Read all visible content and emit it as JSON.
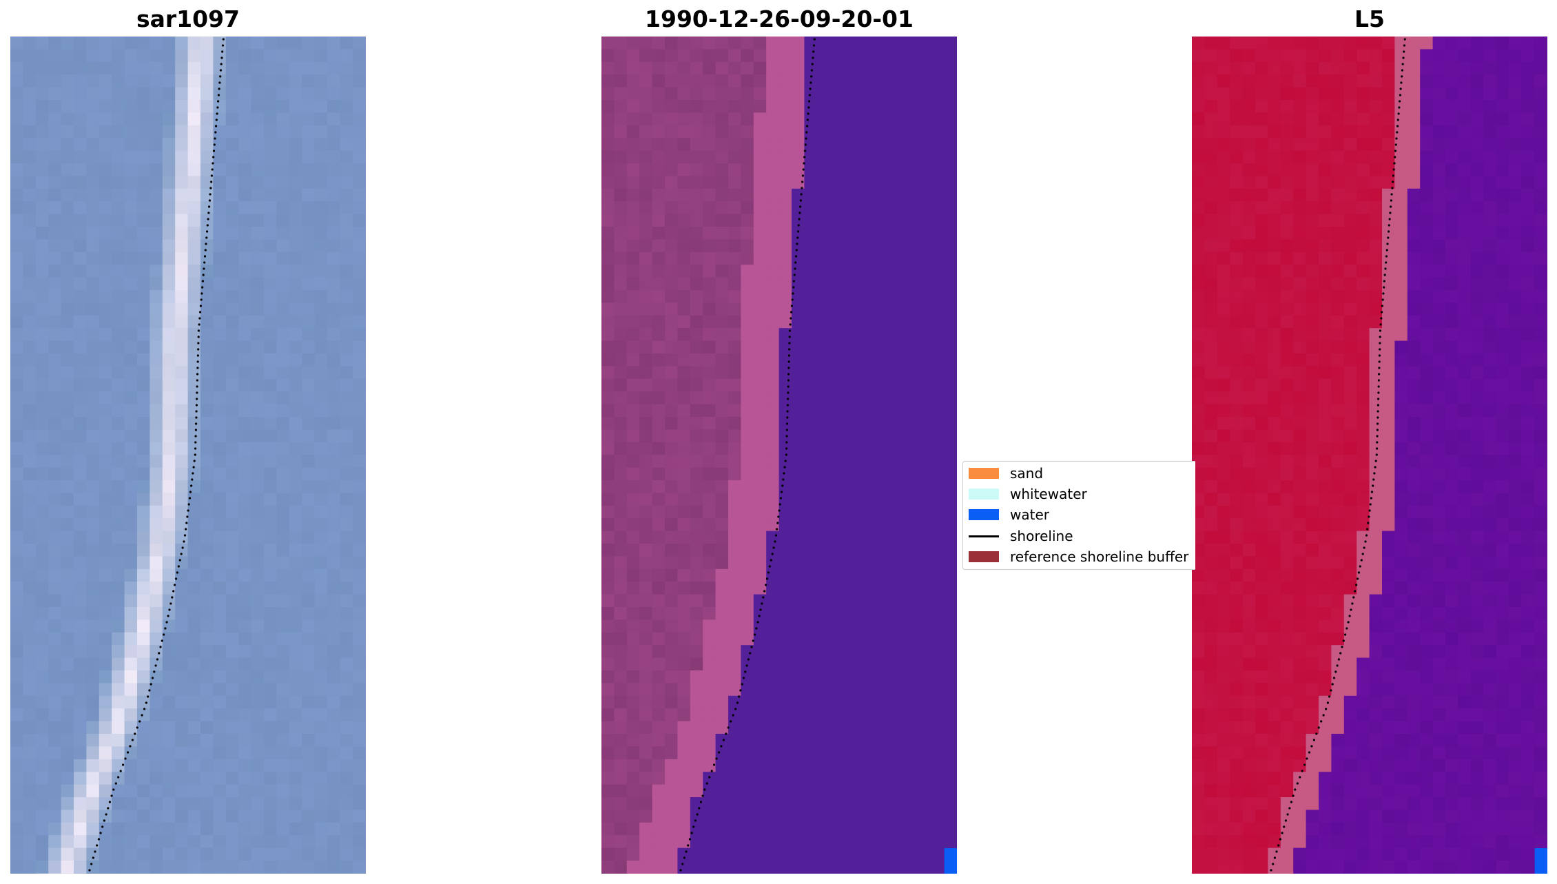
{
  "panels": [
    {
      "title": "sar1097",
      "palette": "rgb"
    },
    {
      "title": "1990-12-26-09-20-01",
      "palette": "classified"
    },
    {
      "title": "L5",
      "palette": "index"
    }
  ],
  "legend": {
    "items": [
      {
        "label": "sand",
        "color": "#f98c3e",
        "kind": "patch"
      },
      {
        "label": "whitewater",
        "color": "#ccfbf7",
        "kind": "patch"
      },
      {
        "label": "water",
        "color": "#0a5ef5",
        "kind": "patch"
      },
      {
        "label": "shoreline",
        "color": "#000000",
        "kind": "line"
      },
      {
        "label": "reference shoreline buffer",
        "color": "#9a3138",
        "kind": "patch"
      }
    ]
  },
  "colors": {
    "rgb_water": "#7d9cc8",
    "rgb_surf": "#f4ecf8",
    "class_land": "#873a77",
    "class_beach": "#b85596",
    "class_water": "#54209a",
    "class_water_pixel": "#0a5ef5",
    "index_land": "#c20c3c",
    "index_beach": "#c75a84",
    "index_water": "#6a10a0",
    "shoreline": "#000000"
  }
}
